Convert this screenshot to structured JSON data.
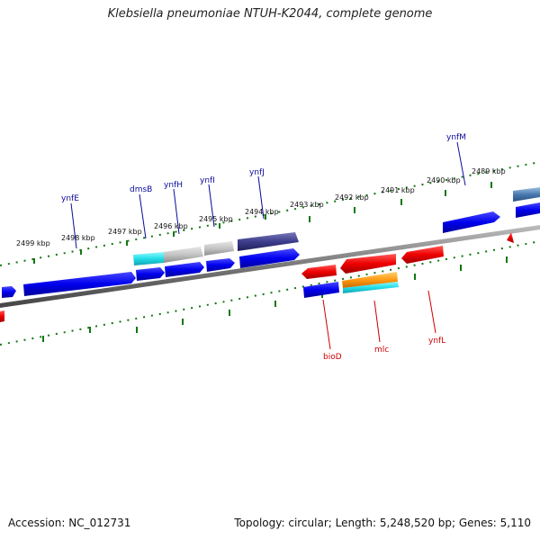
{
  "header": {
    "title": "Klebsiella pneumoniae NTUH-K2044, complete genome"
  },
  "footer": {
    "accession": "Accession: NC_012731",
    "topology": "Topology: circular; Length: 5,248,520 bp; Genes: 5,110"
  },
  "ticks": [
    {
      "label": "2499 kbp"
    },
    {
      "label": "2498 kbp"
    },
    {
      "label": "2497 kbp"
    },
    {
      "label": "2496 kbp"
    },
    {
      "label": "2495 kbp"
    },
    {
      "label": "2494 kbp"
    },
    {
      "label": "2493 kbp"
    },
    {
      "label": "2492 kbp"
    },
    {
      "label": "2491 kbp"
    },
    {
      "label": "2490 kbp"
    },
    {
      "label": "2489 kbp"
    }
  ],
  "genes": [
    {
      "name": "ynfE",
      "strand": "forward"
    },
    {
      "name": "dmsB",
      "strand": "forward"
    },
    {
      "name": "ynfH",
      "strand": "forward"
    },
    {
      "name": "ynfI",
      "strand": "forward"
    },
    {
      "name": "ynfJ",
      "strand": "forward"
    },
    {
      "name": "ynfM",
      "strand": "forward"
    },
    {
      "name": "bioD",
      "strand": "reverse"
    },
    {
      "name": "mlc",
      "strand": "reverse"
    },
    {
      "name": "ynfL",
      "strand": "reverse"
    }
  ],
  "colors": {
    "forward_cds": "#0000ee",
    "reverse_cds": "#ee0000",
    "backbone": "#777777",
    "tick": "#117711",
    "forward_label": "#0a0a9a",
    "reverse_label": "#cc0000"
  }
}
